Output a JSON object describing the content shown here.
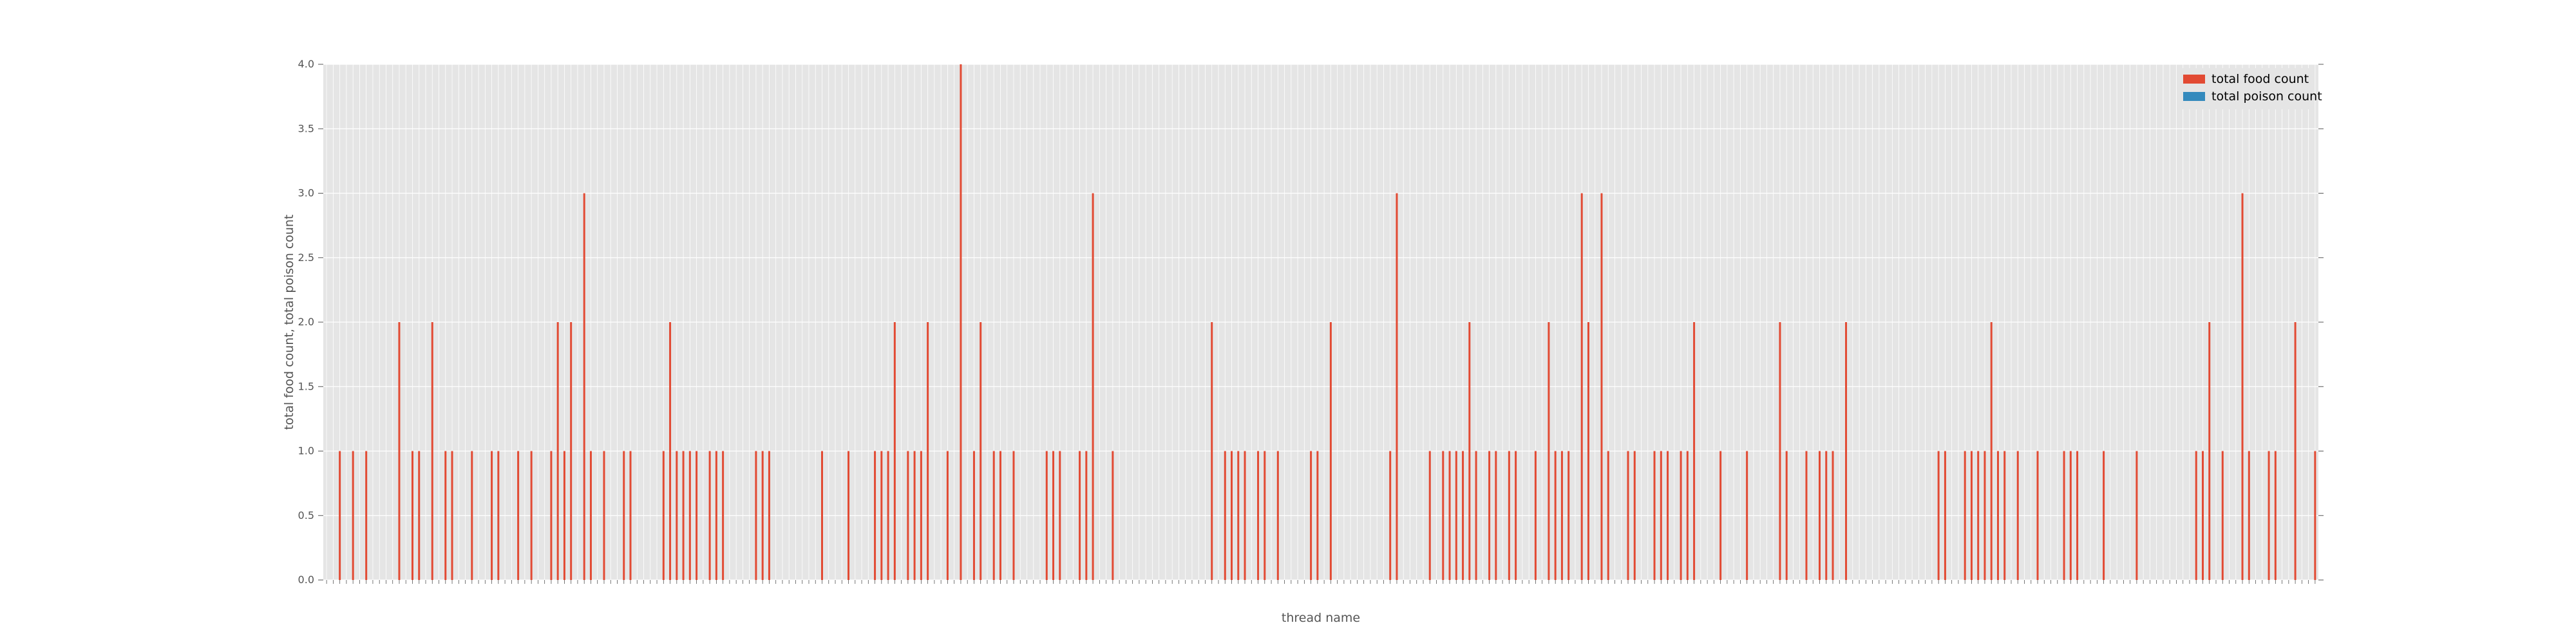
{
  "chart_data": {
    "type": "bar",
    "xlabel": "thread name",
    "ylabel": "total food count, total poison count",
    "ylim": [
      0,
      4
    ],
    "yticks": [
      "0.0",
      "0.5",
      "1.0",
      "1.5",
      "2.0",
      "2.5",
      "3.0",
      "3.5",
      "4.0"
    ],
    "grid": true,
    "legend_position": "top-right",
    "series": [
      {
        "name": "total food count",
        "color": "#e24a33",
        "values": [
          0,
          0,
          1,
          0,
          1,
          0,
          1,
          0,
          0,
          0,
          0,
          2,
          0,
          1,
          1,
          0,
          2,
          0,
          1,
          1,
          0,
          0,
          1,
          0,
          0,
          1,
          1,
          0,
          0,
          1,
          0,
          1,
          0,
          0,
          1,
          2,
          1,
          2,
          0,
          3,
          1,
          0,
          1,
          0,
          0,
          1,
          1,
          0,
          0,
          0,
          0,
          1,
          2,
          1,
          1,
          1,
          1,
          0,
          1,
          1,
          1,
          0,
          0,
          0,
          0,
          1,
          1,
          1,
          0,
          0,
          0,
          0,
          0,
          0,
          0,
          1,
          0,
          0,
          0,
          1,
          0,
          0,
          0,
          1,
          1,
          1,
          2,
          0,
          1,
          1,
          1,
          2,
          0,
          0,
          1,
          0,
          4,
          0,
          1,
          2,
          0,
          1,
          1,
          0,
          1,
          0,
          0,
          0,
          0,
          1,
          1,
          1,
          0,
          0,
          1,
          1,
          3,
          0,
          0,
          1,
          0,
          0,
          0,
          0,
          0,
          0,
          0,
          0,
          0,
          0,
          0,
          0,
          0,
          0,
          2,
          0,
          1,
          1,
          1,
          1,
          0,
          1,
          1,
          0,
          1,
          0,
          0,
          0,
          0,
          1,
          1,
          0,
          2,
          0,
          0,
          0,
          0,
          0,
          0,
          0,
          0,
          1,
          3,
          0,
          0,
          0,
          0,
          1,
          0,
          1,
          1,
          1,
          1,
          2,
          1,
          0,
          1,
          1,
          0,
          1,
          1,
          0,
          0,
          1,
          0,
          2,
          1,
          1,
          1,
          0,
          3,
          2,
          0,
          3,
          1,
          0,
          0,
          1,
          1,
          0,
          0,
          1,
          1,
          1,
          0,
          1,
          1,
          2,
          0,
          0,
          0,
          1,
          0,
          0,
          0,
          1,
          0,
          0,
          0,
          0,
          2,
          1,
          0,
          0,
          1,
          0,
          1,
          1,
          1,
          0,
          2,
          0,
          0,
          0,
          0,
          0,
          0,
          0,
          0,
          0,
          0,
          0,
          0,
          0,
          1,
          1,
          0,
          0,
          1,
          1,
          1,
          1,
          2,
          1,
          1,
          0,
          1,
          0,
          0,
          1,
          0,
          0,
          0,
          1,
          1,
          1,
          0,
          0,
          0,
          1,
          0,
          0,
          0,
          0,
          1,
          0,
          0,
          0,
          0,
          0,
          0,
          0,
          0,
          1,
          1,
          2,
          0,
          1,
          0,
          0,
          3,
          1,
          0,
          0,
          1,
          1,
          0,
          0,
          2,
          0,
          0,
          1
        ]
      },
      {
        "name": "total poison count",
        "color": "#348abd",
        "values": []
      }
    ]
  }
}
